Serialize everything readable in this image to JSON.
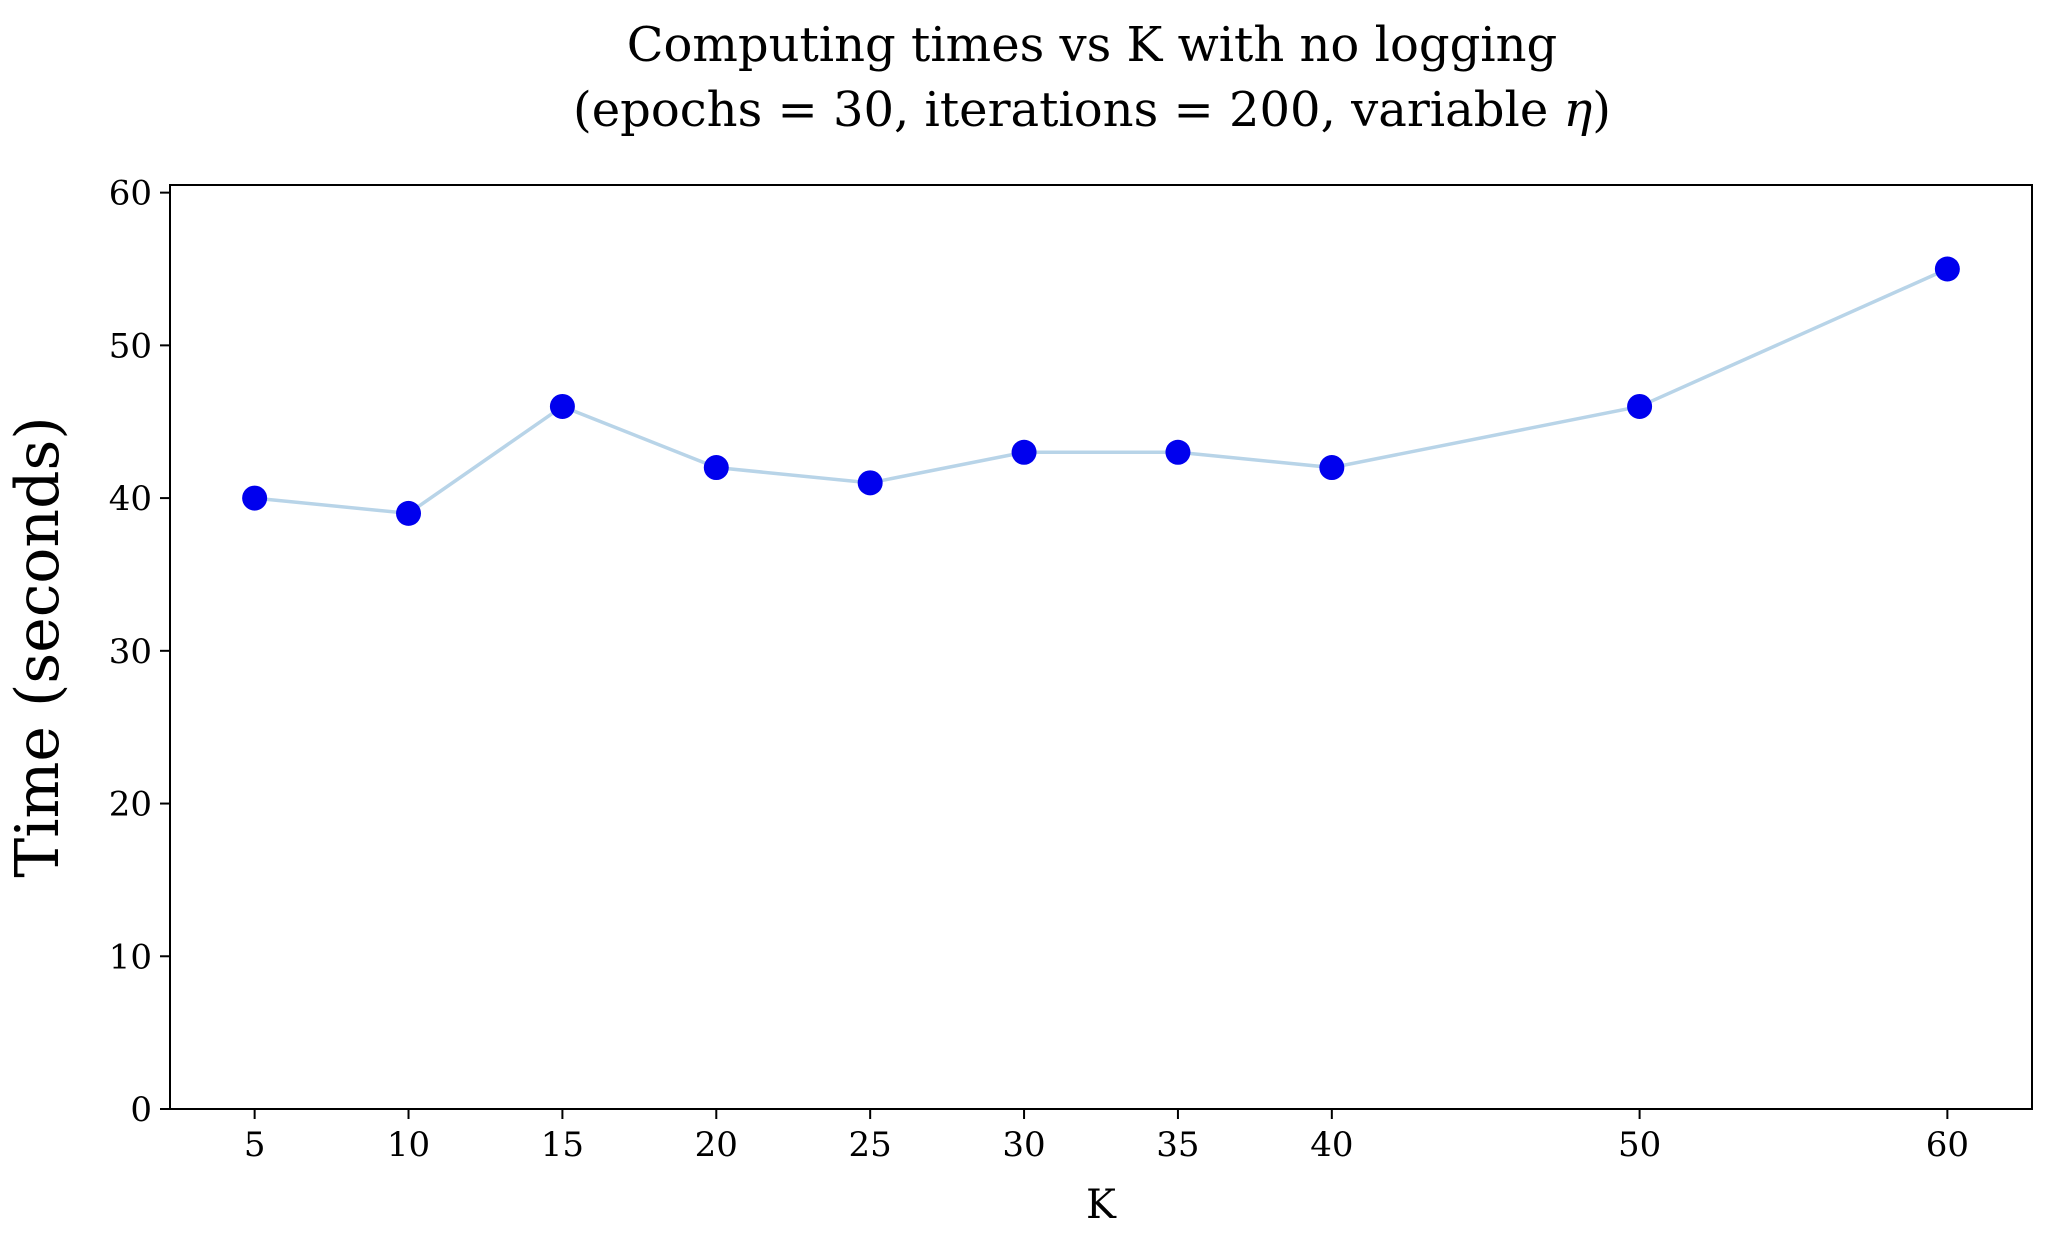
{
  "chart_data": {
    "type": "line",
    "title": "Computing times vs K with no logging",
    "subtitle_prefix": "(epochs = 30, iterations = 200, variable ",
    "subtitle_symbol": "η",
    "subtitle_suffix": ")",
    "xlabel": "K",
    "ylabel": "Time (seconds)",
    "xlim": [
      2.25,
      62.75
    ],
    "ylim": [
      0,
      60.5
    ],
    "xticks": [
      5,
      10,
      15,
      20,
      25,
      30,
      35,
      40,
      50,
      60
    ],
    "yticks": [
      0,
      10,
      20,
      30,
      40,
      50,
      60
    ],
    "grid": false,
    "legend": "none",
    "series": [
      {
        "x": [
          5,
          10,
          15,
          20,
          25,
          30,
          35,
          40,
          50,
          60
        ],
        "y": [
          40,
          39,
          46,
          42,
          41,
          43,
          43,
          42,
          46,
          55
        ],
        "line_color": "#b8d4e8",
        "marker_color": "#0000ee"
      }
    ]
  }
}
